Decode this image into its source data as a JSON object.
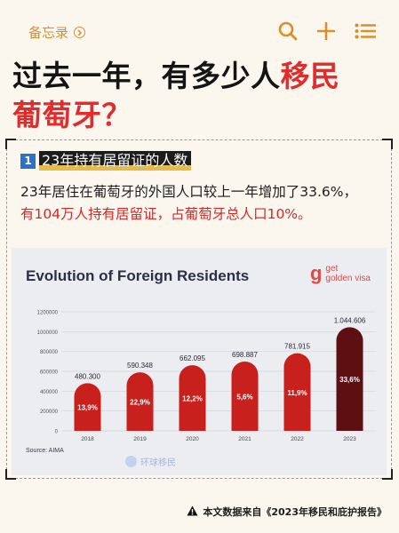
{
  "topbar": {
    "back_label": "备忘录",
    "icons": [
      "search-icon",
      "plus-icon",
      "list-icon"
    ]
  },
  "headline": {
    "line1_prefix": "过去一年，有多少人",
    "line1_highlight": "移民",
    "line2": "葡萄牙？"
  },
  "section": {
    "number": "1",
    "title": "23年持有居留证的人数"
  },
  "body": {
    "line1": "23年居住在葡萄牙的外国人口较上一年增加了33.6%，",
    "line2": "有104万人持有居留证，占葡萄牙总人口10%。"
  },
  "chart_data": {
    "type": "bar",
    "title": "Evolution of Foreign Residents",
    "brand_mark": "g",
    "brand_line1": "get",
    "brand_line2": "golden visa",
    "source": "Source: AIMA",
    "watermark": "环球移民",
    "categories": [
      "2018",
      "2019",
      "2020",
      "2021",
      "2022",
      "2023"
    ],
    "values": [
      480300,
      590348,
      662095,
      698887,
      781915,
      1044606
    ],
    "value_labels": [
      "480.300",
      "590.348",
      "662.095",
      "698.887",
      "781.915",
      "1.044.606"
    ],
    "growth_labels": [
      "13,9%",
      "22,9%",
      "12,2%",
      "5,6%",
      "11,9%",
      "33,6%"
    ],
    "yticks": [
      "0",
      "200000",
      "400000",
      "600000",
      "800000",
      "1000000",
      "1200000"
    ],
    "ylim": [
      0,
      1200000
    ],
    "grid": true,
    "colors": {
      "bar": "#c8201d",
      "highlight": "#5e0f12"
    }
  },
  "footer": {
    "text": "本文数据来自《2023年移民和庇护报告》",
    "icon": "warning-icon"
  }
}
